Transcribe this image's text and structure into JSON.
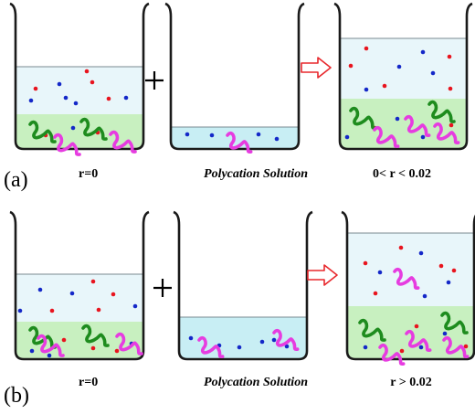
{
  "panels": [
    {
      "id": "a",
      "panel_label": "(a)",
      "caption_left": {
        "var": "r",
        "rest": "=0"
      },
      "caption_middle": "Polycation Solution",
      "caption_right": {
        "before": "0< ",
        "var": "r",
        "after": " < 0.02"
      }
    },
    {
      "id": "b",
      "panel_label": "(b)",
      "caption_left": {
        "var": "r",
        "rest": "=0"
      },
      "caption_middle": "Polycation Solution",
      "caption_right": {
        "before": "",
        "var": "r",
        "after": " > 0.02"
      }
    }
  ],
  "operators": {
    "plus": "+",
    "arrow": "outline-arrow-icon"
  },
  "colors": {
    "beaker_outline": "#1a1a1a",
    "liquid_upper": "#e8f6fa",
    "polycation_solution": "#c8eef4",
    "coacervate_phase": "#c8f0c0",
    "cation_dot": "#e8141e",
    "anion_dot": "#1428c8",
    "polyanion_chain": "#e63ce0",
    "polycation_chain": "#1e8c1e",
    "arrow_outline": "#e8282d"
  }
}
